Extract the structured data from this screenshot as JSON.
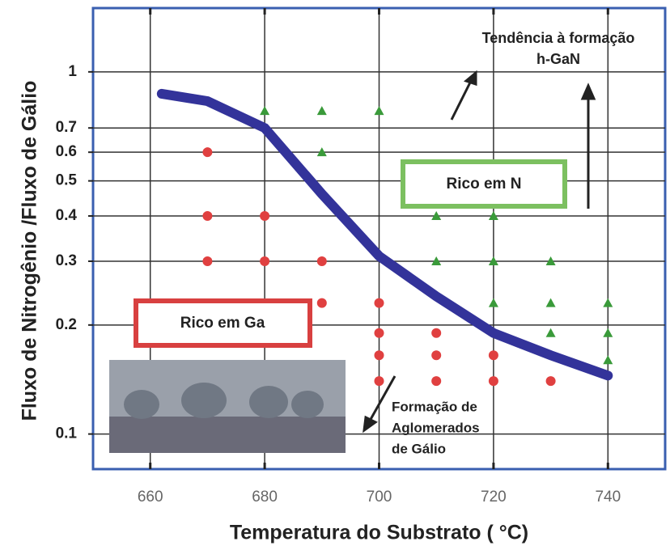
{
  "chart_data": {
    "type": "scatter",
    "x_label": "Temperatura do Substrato ( °C)",
    "y_label": "Fluxo de Nitrogênio /Fluxo de Gálio",
    "xlim": [
      650,
      750
    ],
    "xticks": [
      660,
      680,
      700,
      720,
      740
    ],
    "ylim": [
      0.08,
      1.5
    ],
    "yticks": [
      0.1,
      0.2,
      0.3,
      0.4,
      0.5,
      0.6,
      0.7,
      1
    ],
    "log_y": true,
    "grid": true,
    "series": [
      {
        "marker": "line",
        "color": "#33339a",
        "x": [
          662,
          670,
          680,
          690,
          700,
          710,
          720,
          730,
          740
        ],
        "values": [
          0.87,
          0.83,
          0.7,
          0.46,
          0.31,
          0.24,
          0.19,
          0.165,
          0.145
        ]
      },
      {
        "marker": "circle",
        "color": "#e04040",
        "x": [
          670,
          670,
          670,
          680,
          680,
          690,
          690,
          700,
          700,
          700,
          700,
          710,
          710,
          710,
          720,
          720,
          730
        ],
        "values": [
          0.6,
          0.4,
          0.3,
          0.4,
          0.3,
          0.3,
          0.23,
          0.23,
          0.19,
          0.165,
          0.14,
          0.19,
          0.165,
          0.14,
          0.165,
          0.14,
          0.14
        ]
      },
      {
        "marker": "triangle",
        "color": "#3a9a3a",
        "x": [
          680,
          690,
          690,
          700,
          710,
          710,
          720,
          720,
          720,
          730,
          730,
          730,
          740,
          740,
          740
        ],
        "values": [
          0.78,
          0.78,
          0.6,
          0.78,
          0.4,
          0.3,
          0.4,
          0.3,
          0.23,
          0.3,
          0.23,
          0.19,
          0.23,
          0.19,
          0.16
        ]
      }
    ],
    "annotations": [
      {
        "lines": [
          "Tendência à formação",
          "h-GaN"
        ]
      },
      {
        "lines": [
          "Rico em N"
        ]
      },
      {
        "lines": [
          "Rico em Ga"
        ]
      },
      {
        "lines": [
          "Formação de",
          "Aglomerados",
          "de Gálio"
        ]
      }
    ]
  }
}
